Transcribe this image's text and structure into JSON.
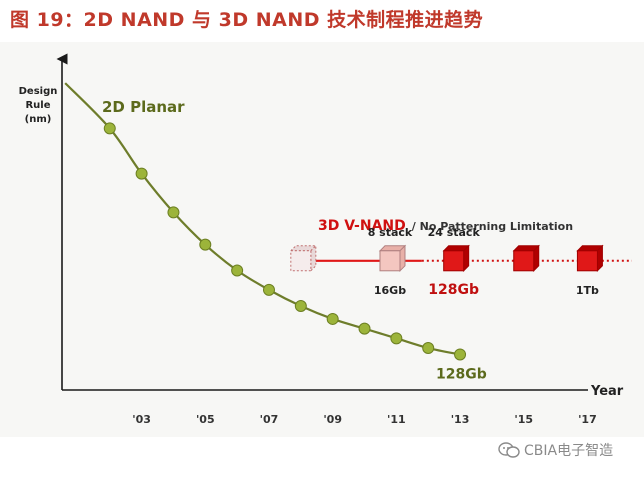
{
  "figure": {
    "title": "图 19：2D NAND 与 3D NAND 技术制程推进趋势",
    "watermark": "CBIA电子智造"
  },
  "chart_data": {
    "type": "line",
    "ylabel": "Design Rule (nm)",
    "ylabel_lines": [
      "Design",
      "Rule",
      "(nm)"
    ],
    "xlabel": "Year",
    "x_ticks": [
      "'03",
      "'05",
      "'07",
      "'09",
      "'11",
      "'13",
      "'15",
      "'17"
    ],
    "x_tick_years": [
      2003,
      2005,
      2007,
      2009,
      2011,
      2013,
      2015,
      2017
    ],
    "xlim": [
      2000.5,
      2018.4
    ],
    "y_scale": "relative",
    "ylim": [
      0,
      100
    ],
    "colors": {
      "planar_line": "#6e7d2b",
      "planar_marker": "#9cb43a",
      "planar_label": "#5c6a1c",
      "vnand": "#e01818",
      "vnand_light": "#f4c6c0",
      "vnand_dotted": "#d01010",
      "axis": "#1a1a1a"
    },
    "series": [
      {
        "name": "2D Planar",
        "x": [
          2000.6,
          2002.0,
          2003.0,
          2004.0,
          2005.0,
          2006.0,
          2007.0,
          2008.0,
          2009.0,
          2010.0,
          2011.0,
          2012.0,
          2013.0
        ],
        "y": [
          95,
          81,
          67,
          55,
          45,
          37,
          31,
          26,
          22,
          19,
          16,
          13,
          11
        ],
        "markers_from_index": 1,
        "end_label": "128Gb"
      }
    ],
    "vnand": {
      "title": "3D V-NAND",
      "subtitle": "/ No Patterning Limitation",
      "level_y": 40,
      "line_start_x": 2008,
      "solid_end_x": 2011.8,
      "dotted_end_x": 2018.4,
      "nodes": [
        {
          "x": 2008.0,
          "style": "outline",
          "top_label": "",
          "bottom_label": ""
        },
        {
          "x": 2010.8,
          "style": "light",
          "top_label": "8 stack",
          "bottom_label": "16Gb"
        },
        {
          "x": 2012.8,
          "style": "solid",
          "top_label": "24 stack",
          "bottom_label": "128Gb"
        },
        {
          "x": 2015.0,
          "style": "solid",
          "top_label": "",
          "bottom_label": ""
        },
        {
          "x": 2017.0,
          "style": "solid",
          "top_label": "",
          "bottom_label": "1Tb"
        }
      ]
    }
  }
}
